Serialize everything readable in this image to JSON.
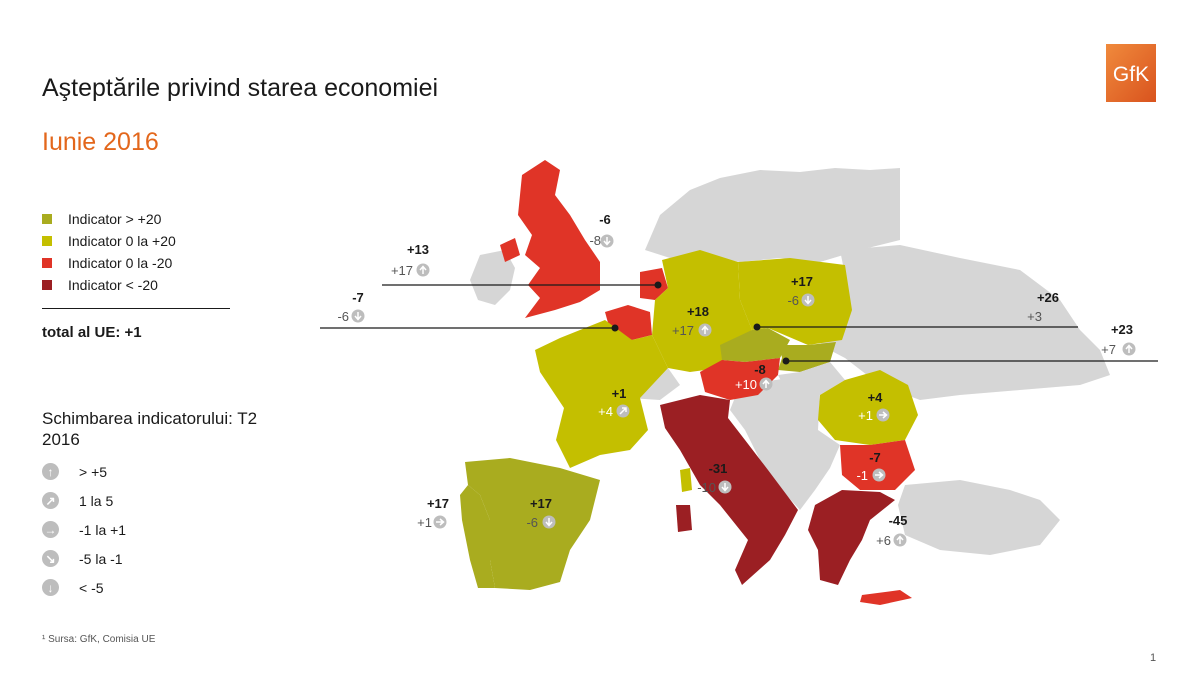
{
  "title": "Aşteptările privind starea economiei",
  "subtitle": "Iunie 2016",
  "logo_text": "GfK",
  "colors": {
    "dark_green": "#a9ac1f",
    "light_green": "#c4bf00",
    "red": "#e03427",
    "dark_red": "#9b1f23",
    "gray": "#d6d6d6",
    "accent": "#e3671c",
    "icon_gray": "#bdbdbd"
  },
  "legend": [
    {
      "label": "Indicator > +20",
      "color": "#a9ac1f"
    },
    {
      "label": "Indicator 0 la +20",
      "color": "#c4bf00"
    },
    {
      "label": "Indicator 0 la -20",
      "color": "#e03427"
    },
    {
      "label": "Indicator < -20",
      "color": "#9b1f23"
    }
  ],
  "eu_total": "total al UE: +1",
  "change_legend": {
    "title": "Schimbarea indicatorului: T2 2016",
    "items": [
      {
        "icon": "arrow-up-icon",
        "label": "> +5"
      },
      {
        "icon": "arrow-up-right-icon",
        "label": "1 la 5"
      },
      {
        "icon": "arrow-right-icon",
        "label": "-1 la +1"
      },
      {
        "icon": "arrow-down-right-icon",
        "label": "-5 la -1"
      },
      {
        "icon": "arrow-down-icon",
        "label": "< -5"
      }
    ]
  },
  "countries": [
    {
      "id": "uk",
      "value": "-6",
      "change": "-8",
      "trend": "arrow-down-icon"
    },
    {
      "id": "netherlands",
      "value": "+13",
      "change": "+17",
      "trend": "arrow-up-icon"
    },
    {
      "id": "belgium",
      "value": "-7",
      "change": "-6",
      "trend": "arrow-down-icon"
    },
    {
      "id": "germany",
      "value": "+18",
      "change": "+17",
      "trend": "arrow-up-icon"
    },
    {
      "id": "poland",
      "value": "+17",
      "change": "-6",
      "trend": "arrow-down-icon"
    },
    {
      "id": "czech-republic",
      "value": "+26",
      "change": "+3",
      "trend": ""
    },
    {
      "id": "slovakia",
      "value": "+23",
      "change": "+7",
      "trend": "arrow-up-icon"
    },
    {
      "id": "austria",
      "value": "-8",
      "change": "+10",
      "trend": "arrow-up-icon"
    },
    {
      "id": "france",
      "value": "+1",
      "change": "+4",
      "trend": "arrow-up-right-icon"
    },
    {
      "id": "romania",
      "value": "+4",
      "change": "+1",
      "trend": "arrow-right-icon"
    },
    {
      "id": "bulgaria",
      "value": "-7",
      "change": "-1",
      "trend": "arrow-right-icon"
    },
    {
      "id": "italy",
      "value": "-31",
      "change": "-10",
      "trend": "arrow-down-icon"
    },
    {
      "id": "portugal",
      "value": "+17",
      "change": "+1",
      "trend": "arrow-right-icon"
    },
    {
      "id": "spain",
      "value": "+17",
      "change": "-6",
      "trend": "arrow-down-icon"
    },
    {
      "id": "greece",
      "value": "-45",
      "change": "+6",
      "trend": "arrow-up-icon"
    }
  ],
  "source": "¹ Sursa: GfK, Comisia UE",
  "page_number": "1"
}
